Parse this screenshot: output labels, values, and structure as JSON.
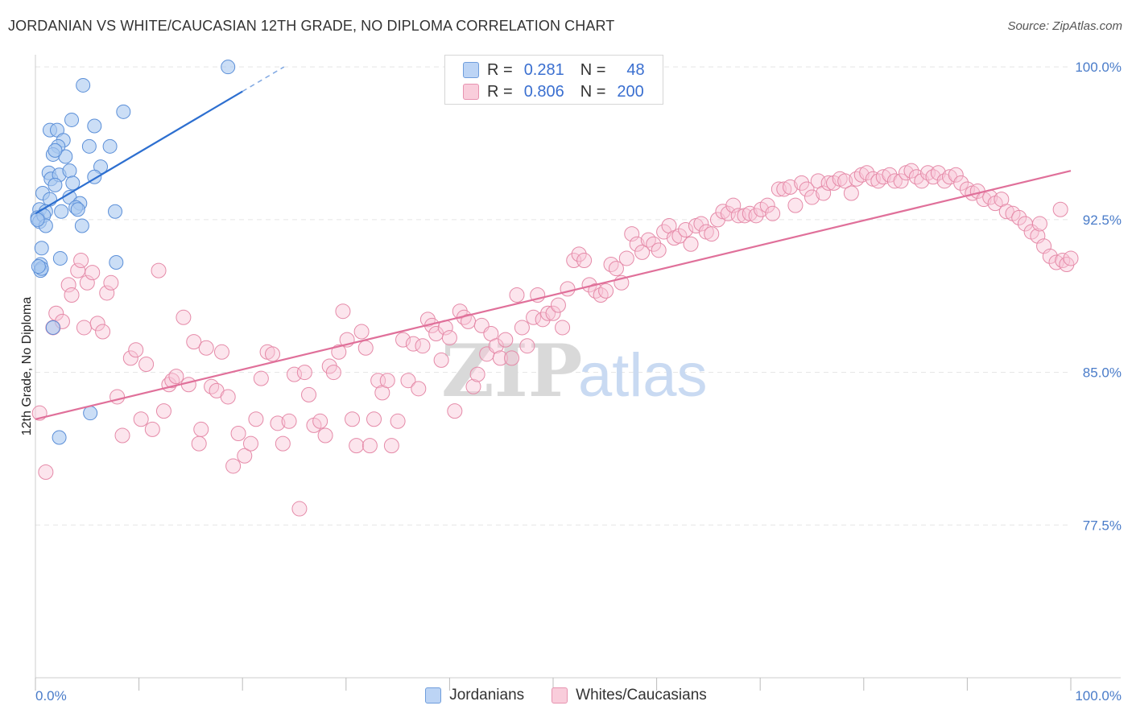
{
  "title": "JORDANIAN VS WHITE/CAUCASIAN 12TH GRADE, NO DIPLOMA CORRELATION CHART",
  "source": "Source: ZipAtlas.com",
  "colors": {
    "blue_fill": "#a9c8f0",
    "blue_stroke": "#5b8fd8",
    "blue_line": "#2d6fd0",
    "pink_fill": "#f8c6d6",
    "pink_stroke": "#e58aa8",
    "pink_line": "#e0709a",
    "tick_text": "#4a7cc9",
    "grid": "#e5e5e5"
  },
  "legend": {
    "rows": [
      {
        "r_label": "R =",
        "r_value": "0.281",
        "n_label": "N =",
        "n_value": "48"
      },
      {
        "r_label": "R =",
        "r_value": "0.806",
        "n_label": "N =",
        "n_value": "200"
      }
    ]
  },
  "bottom_legend": {
    "items": [
      "Jordanians",
      "Whites/Caucasians"
    ]
  },
  "chart_data": {
    "type": "scatter",
    "title": "JORDANIAN VS WHITE/CAUCASIAN 12TH GRADE, NO DIPLOMA CORRELATION CHART",
    "xlabel": "",
    "ylabel": "12th Grade, No Diploma",
    "xlim": [
      0,
      100
    ],
    "ylim": [
      70,
      100.6
    ],
    "x_tick_labels": [
      "0.0%",
      "100.0%"
    ],
    "y_ticks": [
      77.5,
      85.0,
      92.5,
      100.0
    ],
    "y_tick_labels": [
      "77.5%",
      "85.0%",
      "92.5%",
      "100.0%"
    ],
    "grid": true,
    "watermark": {
      "zip": "ZIP",
      "atlas": "atlas"
    },
    "series": [
      {
        "name": "Jordanians",
        "r": 0.281,
        "n": 48,
        "trend": {
          "x0": 0,
          "y0": 92.8,
          "x1": 20,
          "y1": 98.8,
          "dash_to_x": 24,
          "dash_to_y": 100.0
        },
        "points": [
          [
            18.6,
            100.0
          ],
          [
            4.6,
            99.1
          ],
          [
            8.5,
            97.8
          ],
          [
            3.5,
            97.4
          ],
          [
            5.7,
            97.1
          ],
          [
            1.4,
            96.9
          ],
          [
            2.1,
            96.9
          ],
          [
            7.2,
            96.1
          ],
          [
            5.2,
            96.1
          ],
          [
            2.7,
            96.4
          ],
          [
            2.2,
            96.1
          ],
          [
            1.7,
            95.7
          ],
          [
            2.9,
            95.6
          ],
          [
            1.9,
            95.9
          ],
          [
            6.3,
            95.1
          ],
          [
            1.3,
            94.8
          ],
          [
            1.5,
            94.5
          ],
          [
            2.3,
            94.7
          ],
          [
            3.3,
            94.9
          ],
          [
            5.7,
            94.6
          ],
          [
            1.9,
            94.2
          ],
          [
            3.6,
            94.3
          ],
          [
            0.7,
            93.8
          ],
          [
            1.4,
            93.5
          ],
          [
            3.3,
            93.6
          ],
          [
            4.3,
            93.3
          ],
          [
            0.4,
            93.0
          ],
          [
            1.0,
            92.9
          ],
          [
            2.5,
            92.9
          ],
          [
            3.9,
            93.1
          ],
          [
            4.1,
            93.0
          ],
          [
            7.7,
            92.9
          ],
          [
            0.2,
            92.6
          ],
          [
            0.4,
            92.4
          ],
          [
            0.8,
            92.7
          ],
          [
            1.0,
            92.2
          ],
          [
            4.5,
            92.2
          ],
          [
            0.6,
            91.1
          ],
          [
            2.4,
            90.6
          ],
          [
            0.5,
            90.3
          ],
          [
            0.5,
            90.0
          ],
          [
            0.6,
            90.1
          ],
          [
            7.8,
            90.4
          ],
          [
            1.7,
            87.2
          ],
          [
            5.3,
            83.0
          ],
          [
            2.3,
            81.8
          ],
          [
            0.3,
            90.2
          ],
          [
            0.2,
            92.5
          ]
        ]
      },
      {
        "name": "Whites/Caucasians",
        "r": 0.806,
        "n": 200,
        "trend": {
          "x0": 0,
          "y0": 82.7,
          "x1": 100,
          "y1": 94.9
        },
        "points": [
          [
            0.4,
            83.0
          ],
          [
            1.0,
            80.1
          ],
          [
            1.7,
            87.2
          ],
          [
            2.0,
            87.9
          ],
          [
            2.6,
            87.5
          ],
          [
            3.2,
            89.3
          ],
          [
            3.5,
            88.8
          ],
          [
            4.1,
            90.0
          ],
          [
            4.4,
            90.5
          ],
          [
            4.7,
            87.2
          ],
          [
            5.0,
            89.4
          ],
          [
            5.5,
            89.9
          ],
          [
            6.0,
            87.4
          ],
          [
            6.5,
            87.0
          ],
          [
            6.9,
            88.9
          ],
          [
            7.3,
            89.4
          ],
          [
            7.9,
            83.8
          ],
          [
            8.4,
            81.9
          ],
          [
            9.2,
            85.7
          ],
          [
            9.7,
            86.1
          ],
          [
            10.2,
            82.7
          ],
          [
            10.7,
            85.4
          ],
          [
            11.3,
            82.2
          ],
          [
            11.9,
            90.0
          ],
          [
            12.4,
            83.1
          ],
          [
            12.9,
            84.4
          ],
          [
            13.2,
            84.6
          ],
          [
            13.6,
            84.8
          ],
          [
            14.3,
            87.7
          ],
          [
            14.8,
            84.4
          ],
          [
            15.3,
            86.5
          ],
          [
            15.8,
            81.5
          ],
          [
            16.0,
            82.2
          ],
          [
            16.5,
            86.2
          ],
          [
            17.0,
            84.3
          ],
          [
            17.5,
            84.1
          ],
          [
            18.0,
            86.0
          ],
          [
            18.6,
            83.8
          ],
          [
            19.1,
            80.4
          ],
          [
            19.6,
            82.0
          ],
          [
            20.2,
            80.9
          ],
          [
            20.8,
            81.5
          ],
          [
            21.3,
            82.7
          ],
          [
            21.8,
            84.7
          ],
          [
            22.4,
            86.0
          ],
          [
            22.9,
            85.9
          ],
          [
            23.4,
            82.5
          ],
          [
            23.9,
            81.5
          ],
          [
            24.5,
            82.6
          ],
          [
            25.0,
            84.9
          ],
          [
            25.5,
            78.3
          ],
          [
            26.0,
            85.0
          ],
          [
            26.4,
            83.9
          ],
          [
            26.9,
            82.4
          ],
          [
            27.5,
            82.6
          ],
          [
            28.0,
            81.9
          ],
          [
            28.4,
            85.3
          ],
          [
            28.8,
            85.0
          ],
          [
            29.3,
            86.0
          ],
          [
            29.7,
            88.0
          ],
          [
            30.1,
            86.6
          ],
          [
            30.6,
            82.7
          ],
          [
            31.0,
            81.4
          ],
          [
            31.5,
            87.0
          ],
          [
            31.9,
            86.2
          ],
          [
            32.3,
            81.4
          ],
          [
            32.7,
            82.7
          ],
          [
            33.1,
            84.6
          ],
          [
            33.5,
            84.0
          ],
          [
            34.0,
            84.6
          ],
          [
            34.4,
            81.4
          ],
          [
            35.0,
            82.6
          ],
          [
            35.5,
            86.6
          ],
          [
            36.0,
            84.6
          ],
          [
            36.5,
            86.4
          ],
          [
            37.0,
            84.2
          ],
          [
            37.4,
            86.3
          ],
          [
            37.9,
            87.6
          ],
          [
            38.3,
            87.3
          ],
          [
            38.7,
            86.9
          ],
          [
            39.2,
            85.6
          ],
          [
            39.6,
            87.2
          ],
          [
            40.0,
            86.7
          ],
          [
            40.5,
            83.1
          ],
          [
            41.0,
            88.0
          ],
          [
            41.4,
            87.7
          ],
          [
            41.8,
            87.5
          ],
          [
            42.3,
            84.3
          ],
          [
            42.7,
            84.9
          ],
          [
            43.1,
            87.3
          ],
          [
            43.6,
            85.9
          ],
          [
            44.0,
            86.9
          ],
          [
            44.5,
            86.3
          ],
          [
            44.9,
            85.7
          ],
          [
            45.4,
            86.6
          ],
          [
            46.0,
            85.7
          ],
          [
            46.5,
            88.8
          ],
          [
            47.0,
            87.2
          ],
          [
            47.5,
            86.3
          ],
          [
            48.1,
            87.7
          ],
          [
            48.5,
            88.8
          ],
          [
            49.0,
            87.6
          ],
          [
            49.5,
            87.9
          ],
          [
            50.0,
            87.9
          ],
          [
            50.5,
            88.3
          ],
          [
            50.9,
            87.2
          ],
          [
            51.4,
            89.1
          ],
          [
            52.0,
            90.5
          ],
          [
            52.5,
            90.8
          ],
          [
            53.0,
            90.5
          ],
          [
            53.5,
            89.3
          ],
          [
            54.1,
            89.0
          ],
          [
            54.6,
            88.8
          ],
          [
            55.1,
            89.0
          ],
          [
            55.6,
            90.3
          ],
          [
            56.1,
            90.1
          ],
          [
            56.6,
            89.4
          ],
          [
            57.1,
            90.6
          ],
          [
            57.6,
            91.8
          ],
          [
            58.1,
            91.3
          ],
          [
            58.6,
            90.9
          ],
          [
            59.2,
            91.5
          ],
          [
            59.7,
            91.3
          ],
          [
            60.2,
            91.0
          ],
          [
            60.7,
            91.9
          ],
          [
            61.2,
            92.2
          ],
          [
            61.7,
            91.6
          ],
          [
            62.2,
            91.7
          ],
          [
            62.8,
            92.0
          ],
          [
            63.3,
            91.3
          ],
          [
            63.8,
            92.2
          ],
          [
            64.3,
            92.3
          ],
          [
            64.8,
            91.9
          ],
          [
            65.3,
            91.8
          ],
          [
            65.9,
            92.5
          ],
          [
            66.4,
            92.9
          ],
          [
            66.9,
            92.8
          ],
          [
            67.4,
            93.2
          ],
          [
            67.9,
            92.7
          ],
          [
            68.5,
            92.7
          ],
          [
            69.0,
            92.8
          ],
          [
            69.6,
            92.7
          ],
          [
            70.1,
            93.0
          ],
          [
            70.7,
            93.2
          ],
          [
            71.2,
            92.8
          ],
          [
            71.8,
            94.0
          ],
          [
            72.3,
            94.0
          ],
          [
            72.9,
            94.1
          ],
          [
            73.4,
            93.2
          ],
          [
            74.0,
            94.3
          ],
          [
            74.5,
            94.0
          ],
          [
            75.0,
            93.6
          ],
          [
            75.6,
            94.4
          ],
          [
            76.1,
            93.8
          ],
          [
            76.6,
            94.3
          ],
          [
            77.1,
            94.3
          ],
          [
            77.7,
            94.5
          ],
          [
            78.2,
            94.4
          ],
          [
            78.8,
            93.8
          ],
          [
            79.3,
            94.5
          ],
          [
            79.8,
            94.7
          ],
          [
            80.3,
            94.8
          ],
          [
            80.9,
            94.5
          ],
          [
            81.4,
            94.4
          ],
          [
            81.9,
            94.6
          ],
          [
            82.5,
            94.7
          ],
          [
            83.0,
            94.4
          ],
          [
            83.6,
            94.4
          ],
          [
            84.1,
            94.8
          ],
          [
            84.6,
            94.9
          ],
          [
            85.1,
            94.6
          ],
          [
            85.6,
            94.4
          ],
          [
            86.2,
            94.8
          ],
          [
            86.7,
            94.6
          ],
          [
            87.2,
            94.8
          ],
          [
            87.8,
            94.4
          ],
          [
            88.3,
            94.6
          ],
          [
            88.9,
            94.7
          ],
          [
            89.4,
            94.3
          ],
          [
            90.0,
            94.0
          ],
          [
            90.5,
            93.8
          ],
          [
            91.0,
            93.9
          ],
          [
            91.6,
            93.5
          ],
          [
            92.2,
            93.6
          ],
          [
            92.7,
            93.3
          ],
          [
            93.3,
            93.5
          ],
          [
            93.8,
            92.9
          ],
          [
            94.4,
            92.8
          ],
          [
            95.0,
            92.6
          ],
          [
            95.6,
            92.3
          ],
          [
            96.2,
            91.9
          ],
          [
            96.8,
            91.7
          ],
          [
            97.4,
            91.2
          ],
          [
            98.0,
            90.7
          ],
          [
            98.6,
            90.4
          ],
          [
            99.2,
            90.5
          ],
          [
            99.6,
            90.3
          ],
          [
            100.0,
            90.6
          ],
          [
            99.0,
            93.0
          ],
          [
            97.0,
            92.3
          ]
        ]
      }
    ]
  }
}
